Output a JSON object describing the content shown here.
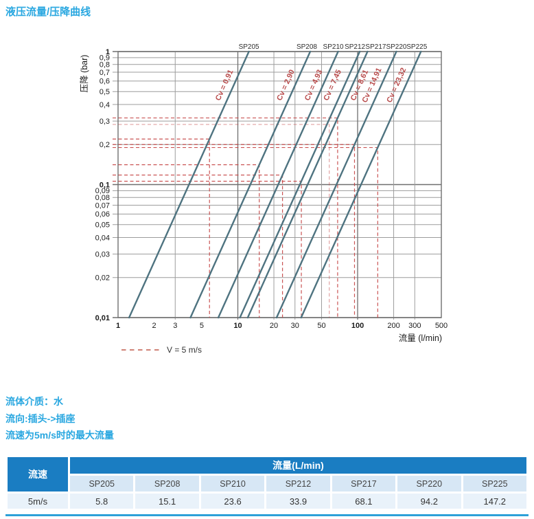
{
  "page_title": "液压流量/压降曲线",
  "chart_data": {
    "type": "line",
    "title": "液压流量/压降曲线",
    "x_axis": {
      "label": "流量 (l/min)",
      "scale": "log",
      "range": [
        1,
        500
      ],
      "tick_values": [
        1,
        2,
        3,
        5,
        10,
        20,
        30,
        50,
        100,
        200,
        300,
        500
      ],
      "tick_labels": [
        "1",
        "2",
        "3",
        "5",
        "10",
        "20",
        "30",
        "50",
        "100",
        "200",
        "300",
        "500"
      ],
      "bold_ticks": [
        1,
        10,
        100
      ],
      "gridline_values": [
        3,
        10,
        20,
        30,
        50,
        100,
        200,
        300
      ],
      "major_gridlines": [
        10,
        100
      ]
    },
    "y_axis": {
      "label": "压降 (bar)",
      "scale": "log",
      "range": [
        0.01,
        1
      ],
      "tick_values": [
        1,
        0.9,
        0.8,
        0.7,
        0.6,
        0.5,
        0.4,
        0.3,
        0.2,
        0.1,
        0.09,
        0.08,
        0.07,
        0.06,
        0.05,
        0.04,
        0.03,
        0.02,
        0.01
      ],
      "tick_labels": [
        "1",
        "0,9",
        "0,8",
        "0,7",
        "0,6",
        "0,5",
        "0,4",
        "0,3",
        "0,2",
        "0,1",
        "0,09",
        "0,08",
        "0,07",
        "0,06",
        "0,05",
        "0,04",
        "0,03",
        "0,02",
        "0,01"
      ],
      "bold_ticks": [
        1,
        0.1,
        0.01
      ]
    },
    "slope_log_log": 2,
    "series": [
      {
        "name": "SP205",
        "cv": 0.91,
        "cv_label": "Cv = 0,91",
        "max_flow_at_5ms_lmin": 5.8,
        "dp_bar_at_max_flow": 0.22
      },
      {
        "name": "SP208",
        "cv": 2.9,
        "cv_label": "Cv = 2,90",
        "max_flow_at_5ms_lmin": 15.1,
        "dp_bar_at_max_flow": 0.141
      },
      {
        "name": "SP210",
        "cv": 4.93,
        "cv_label": "Cv = 4,93",
        "max_flow_at_5ms_lmin": 23.6,
        "dp_bar_at_max_flow": 0.118
      },
      {
        "name": "SP212",
        "cv": 7.45,
        "cv_label": "Cv = 7,45",
        "max_flow_at_5ms_lmin": 33.9,
        "dp_bar_at_max_flow": 0.106
      },
      {
        "name": "SP217",
        "cv": 8.61,
        "cv_label": "Cv = 8,61",
        "max_flow_at_5ms_lmin": 68.1,
        "dp_bar_at_max_flow": 0.317
      },
      {
        "name": "SP220",
        "cv": 14.91,
        "cv_label": "Cv = 14,91",
        "max_flow_at_5ms_lmin": 94.2,
        "dp_bar_at_max_flow": 0.2
      },
      {
        "name": "SP225",
        "cv": 23.32,
        "cv_label": "Cv = 23,32",
        "max_flow_at_5ms_lmin": 147.2,
        "dp_bar_at_max_flow": 0.19
      }
    ],
    "v5_dashed_lines": [
      {
        "series": "SP205",
        "q_lmin": 5.8,
        "dp_bar": 0.22,
        "faint": false
      },
      {
        "series": "SP208",
        "q_lmin": 15.1,
        "dp_bar": 0.141,
        "faint": false
      },
      {
        "series": "SP210",
        "q_lmin": 23.6,
        "dp_bar": 0.118,
        "faint": false
      },
      {
        "series": "SP212",
        "q_lmin": 33.9,
        "dp_bar": 0.106,
        "faint": false
      },
      {
        "series": "SP217",
        "q_lmin": 68.1,
        "dp_bar": 0.317,
        "faint": false
      },
      {
        "series": "SP220",
        "q_lmin": 94.2,
        "dp_bar": 0.2,
        "faint": false
      },
      {
        "series": "SP225",
        "q_lmin": 147.2,
        "dp_bar": 0.19,
        "faint": false
      },
      {
        "series": "unlabeled",
        "q_lmin": 58,
        "dp_bar": 0.283,
        "faint": true
      }
    ],
    "legend": {
      "label": "V = 5 m/s",
      "position": "bottom-left"
    },
    "grid": true
  },
  "notes": [
    "流体介质：水",
    "流向:插头->插座",
    "流速为5m/s时的最大流量"
  ],
  "table": {
    "corner_label": "流速",
    "group_header": "流量(L/min)",
    "columns": [
      "SP205",
      "SP208",
      "SP210",
      "SP212",
      "SP217",
      "SP220",
      "SP225"
    ],
    "rows": [
      {
        "label": "5m/s",
        "values": [
          "5.8",
          "15.1",
          "23.6",
          "33.9",
          "68.1",
          "94.2",
          "147.2"
        ]
      }
    ]
  },
  "colors": {
    "accent_text": "#29a7e0",
    "table_header_bg": "#1a7dc2",
    "table_model_row_bg": "#d7e7f5",
    "table_value_row_bg": "#e9f2fa",
    "table_bottom_rule": "#2da0d8",
    "curve": "#4e7380",
    "dashed_red": "#c64545",
    "cv_label_red": "#b84a4a",
    "grid_minor": "#9c9c9c",
    "grid_major": "#6f6f6f"
  }
}
